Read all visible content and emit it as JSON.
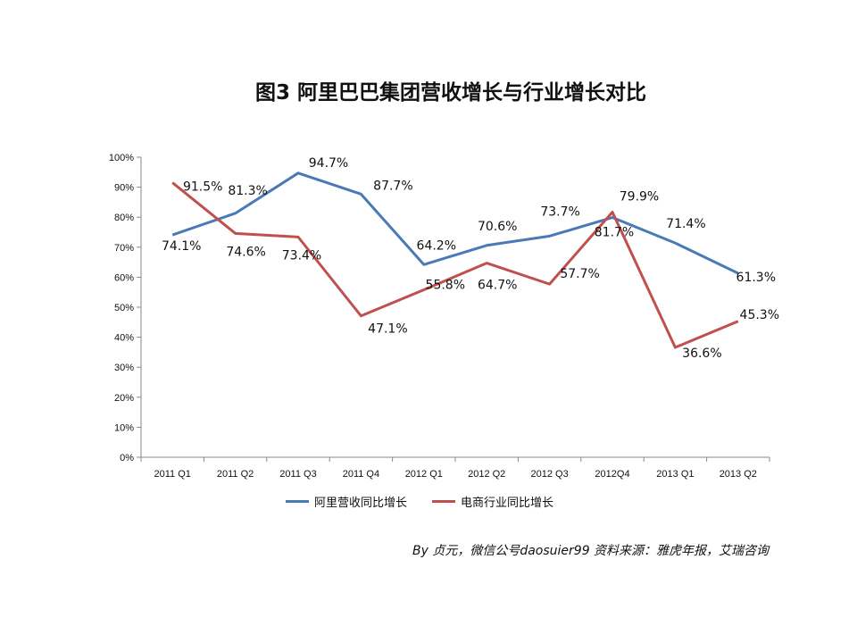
{
  "title": "图3  阿里巴巴集团营收增长与行业增长对比",
  "credit": "By 贞元，微信公号daosuier99     资料来源：雅虎年报，艾瑞咨询",
  "colors": {
    "alibaba": "#4a7ab5",
    "ecommerce": "#c0504d",
    "axis": "#888888"
  },
  "chart_data": {
    "type": "line",
    "categories": [
      "2011 Q1",
      "2011 Q2",
      "2011 Q3",
      "2011 Q4",
      "2012 Q1",
      "2012 Q2",
      "2012 Q3",
      "2012Q4",
      "2013 Q1",
      "2013 Q2"
    ],
    "yticks": [
      "0%",
      "10%",
      "20%",
      "30%",
      "40%",
      "50%",
      "60%",
      "70%",
      "80%",
      "90%",
      "100%"
    ],
    "ylim": [
      0,
      100
    ],
    "grid": false,
    "legend": "bottom",
    "series": [
      {
        "name": "阿里营收同比增长",
        "values": [
          74.1,
          81.3,
          94.7,
          87.7,
          64.2,
          70.6,
          73.7,
          79.9,
          71.4,
          61.3
        ],
        "labels": [
          "74.1%",
          "81.3%",
          "94.7%",
          "87.7%",
          "64.2%",
          "70.6%",
          "73.7%",
          "79.9%",
          "71.4%",
          "61.3%"
        ]
      },
      {
        "name": "电商行业同比增长",
        "values": [
          91.5,
          74.6,
          73.4,
          47.1,
          55.8,
          64.7,
          57.7,
          81.7,
          36.6,
          45.3
        ],
        "labels": [
          "91.5%",
          "74.6%",
          "73.4%",
          "47.1%",
          "55.8%",
          "64.7%",
          "57.7%",
          "81.7%",
          "36.6%",
          "45.3%"
        ]
      }
    ]
  }
}
